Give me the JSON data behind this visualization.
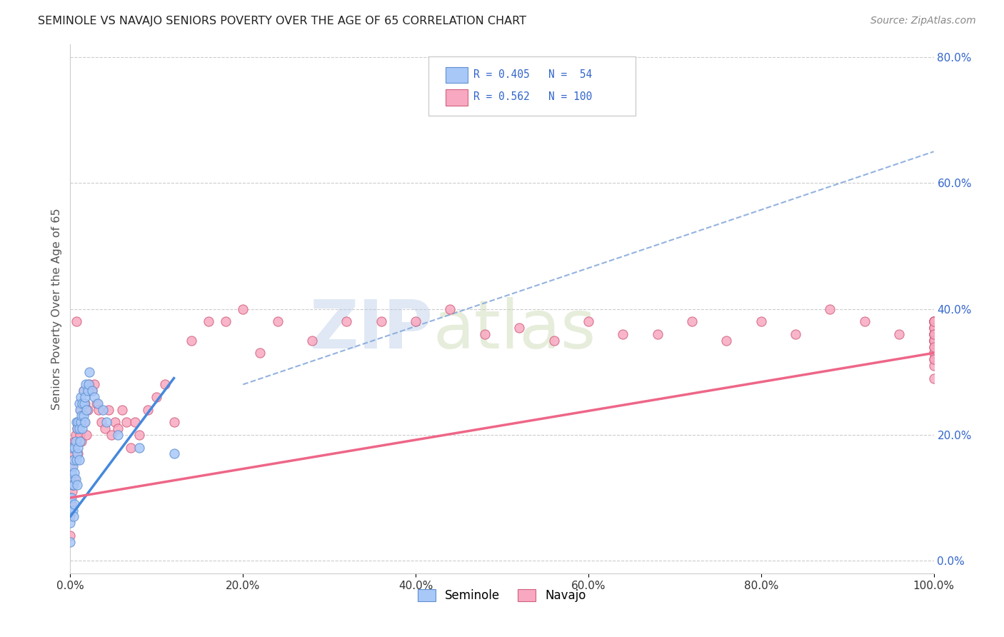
{
  "title": "SEMINOLE VS NAVAJO SENIORS POVERTY OVER THE AGE OF 65 CORRELATION CHART",
  "source": "Source: ZipAtlas.com",
  "ylabel": "Seniors Poverty Over the Age of 65",
  "xlim": [
    0,
    1.0
  ],
  "ylim": [
    -0.02,
    0.82
  ],
  "xticks": [
    0.0,
    0.2,
    0.4,
    0.6,
    0.8,
    1.0
  ],
  "xticklabels": [
    "0.0%",
    "20.0%",
    "40.0%",
    "60.0%",
    "80.0%",
    "100.0%"
  ],
  "ytick_positions": [
    0.0,
    0.2,
    0.4,
    0.6,
    0.8
  ],
  "ytick_labels_right": [
    "0.0%",
    "20.0%",
    "40.0%",
    "60.0%",
    "80.0%"
  ],
  "seminole_color": "#a8c8f8",
  "navajo_color": "#f8a8c0",
  "seminole_edge": "#6090d0",
  "navajo_edge": "#d06080",
  "legend_color": "#3366cc",
  "watermark_zip": "ZIP",
  "watermark_atlas": "atlas",
  "watermark_color": "#c8d8f0",
  "seminole_line_color": "#4488dd",
  "navajo_line_color": "#ee6688",
  "trend_line_color": "#aaaacc",
  "background_color": "#ffffff",
  "seminole_points_x": [
    0.0,
    0.0,
    0.0,
    0.0,
    0.0,
    0.001,
    0.001,
    0.002,
    0.002,
    0.003,
    0.003,
    0.004,
    0.004,
    0.004,
    0.005,
    0.005,
    0.005,
    0.006,
    0.006,
    0.007,
    0.007,
    0.008,
    0.008,
    0.008,
    0.009,
    0.009,
    0.01,
    0.01,
    0.01,
    0.011,
    0.011,
    0.012,
    0.012,
    0.013,
    0.014,
    0.014,
    0.015,
    0.015,
    0.016,
    0.017,
    0.017,
    0.018,
    0.019,
    0.02,
    0.021,
    0.022,
    0.025,
    0.028,
    0.032,
    0.038,
    0.042,
    0.055,
    0.08,
    0.12
  ],
  "seminole_points_y": [
    0.13,
    0.1,
    0.08,
    0.06,
    0.03,
    0.14,
    0.1,
    0.18,
    0.12,
    0.15,
    0.08,
    0.16,
    0.12,
    0.07,
    0.18,
    0.14,
    0.09,
    0.19,
    0.13,
    0.22,
    0.16,
    0.21,
    0.17,
    0.12,
    0.22,
    0.18,
    0.25,
    0.21,
    0.16,
    0.24,
    0.19,
    0.26,
    0.22,
    0.23,
    0.25,
    0.21,
    0.27,
    0.23,
    0.25,
    0.26,
    0.22,
    0.28,
    0.24,
    0.27,
    0.28,
    0.3,
    0.27,
    0.26,
    0.25,
    0.24,
    0.22,
    0.2,
    0.18,
    0.17
  ],
  "navajo_points_x": [
    0.0,
    0.0,
    0.0,
    0.0,
    0.001,
    0.001,
    0.002,
    0.002,
    0.003,
    0.003,
    0.004,
    0.005,
    0.005,
    0.006,
    0.007,
    0.008,
    0.009,
    0.01,
    0.011,
    0.012,
    0.013,
    0.015,
    0.016,
    0.017,
    0.019,
    0.02,
    0.022,
    0.025,
    0.028,
    0.03,
    0.033,
    0.036,
    0.04,
    0.044,
    0.048,
    0.052,
    0.055,
    0.06,
    0.065,
    0.07,
    0.075,
    0.08,
    0.09,
    0.1,
    0.11,
    0.12,
    0.14,
    0.16,
    0.18,
    0.2,
    0.22,
    0.24,
    0.28,
    0.32,
    0.36,
    0.4,
    0.44,
    0.48,
    0.52,
    0.56,
    0.6,
    0.64,
    0.68,
    0.72,
    0.76,
    0.8,
    0.84,
    0.88,
    0.92,
    0.96,
    1.0,
    1.0,
    1.0,
    1.0,
    1.0,
    1.0,
    1.0,
    1.0,
    1.0,
    1.0,
    1.0,
    1.0,
    1.0,
    1.0,
    1.0,
    1.0,
    1.0,
    1.0,
    1.0,
    1.0,
    1.0,
    1.0,
    1.0,
    1.0,
    1.0,
    1.0,
    1.0,
    1.0,
    1.0,
    1.0
  ],
  "navajo_points_y": [
    0.13,
    0.1,
    0.07,
    0.04,
    0.15,
    0.09,
    0.17,
    0.11,
    0.18,
    0.12,
    0.16,
    0.19,
    0.13,
    0.2,
    0.38,
    0.21,
    0.17,
    0.22,
    0.2,
    0.24,
    0.19,
    0.27,
    0.22,
    0.25,
    0.2,
    0.24,
    0.28,
    0.27,
    0.28,
    0.25,
    0.24,
    0.22,
    0.21,
    0.24,
    0.2,
    0.22,
    0.21,
    0.24,
    0.22,
    0.18,
    0.22,
    0.2,
    0.24,
    0.26,
    0.28,
    0.22,
    0.35,
    0.38,
    0.38,
    0.4,
    0.33,
    0.38,
    0.35,
    0.38,
    0.38,
    0.38,
    0.4,
    0.36,
    0.37,
    0.35,
    0.38,
    0.36,
    0.36,
    0.38,
    0.35,
    0.38,
    0.36,
    0.4,
    0.38,
    0.36,
    0.38,
    0.36,
    0.35,
    0.38,
    0.37,
    0.36,
    0.38,
    0.35,
    0.38,
    0.33,
    0.35,
    0.38,
    0.32,
    0.36,
    0.38,
    0.34,
    0.37,
    0.38,
    0.36,
    0.35,
    0.38,
    0.37,
    0.31,
    0.33,
    0.35,
    0.36,
    0.29,
    0.34,
    0.32,
    0.38
  ],
  "seminole_trend_x": [
    0.0,
    0.12
  ],
  "seminole_trend_y": [
    0.07,
    0.29
  ],
  "navajo_trend_x": [
    0.0,
    1.0
  ],
  "navajo_trend_y": [
    0.1,
    0.33
  ],
  "dashed_trend_x": [
    0.2,
    1.0
  ],
  "dashed_trend_y": [
    0.28,
    0.65
  ]
}
